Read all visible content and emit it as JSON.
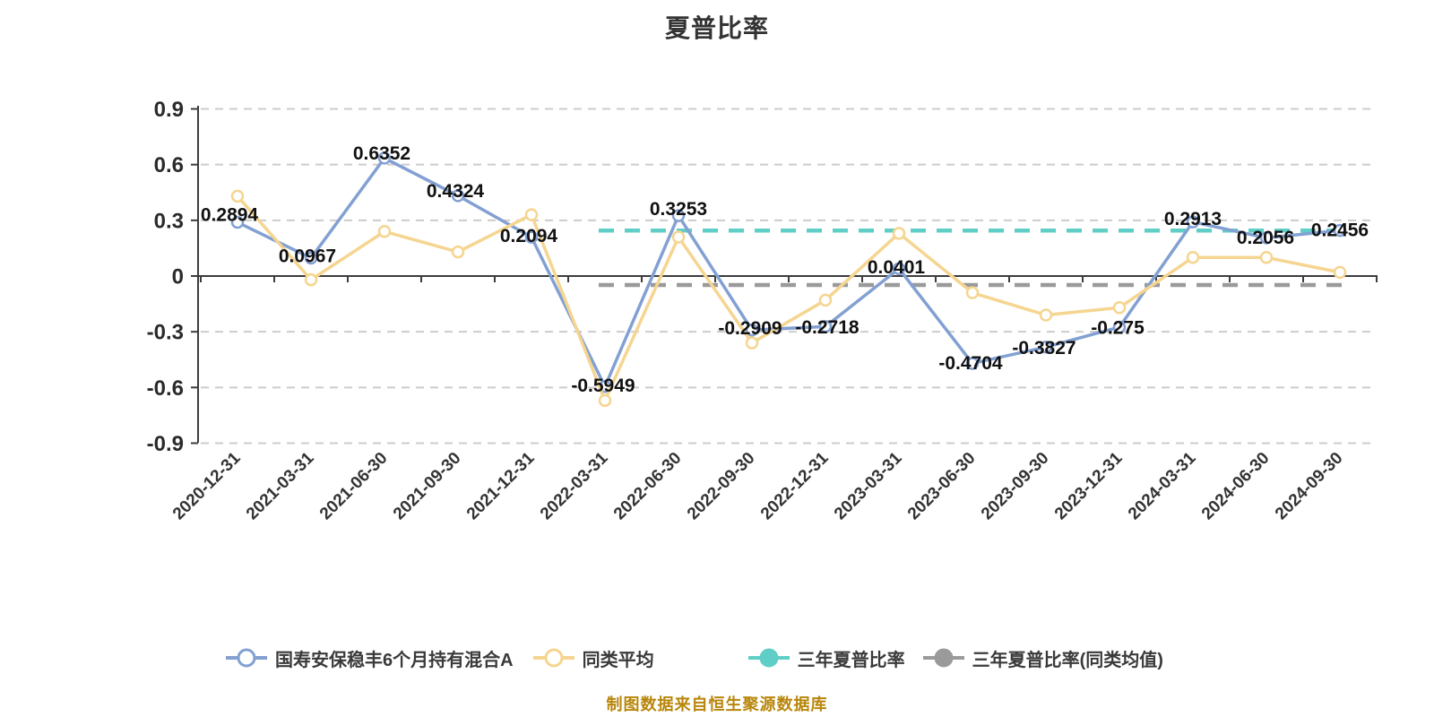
{
  "title": "夏普比率",
  "footer": "制图数据来自恒生聚源数据库",
  "colors": {
    "fund_line": "#82A0D2",
    "peer_line": "#F5D590",
    "sharpe_3y_line": "#5FCEC6",
    "sharpe_3y_peer_line": "#9A9A9A",
    "grid": "#CCCCCC",
    "axis": "#3C3C3C",
    "data_label": "#111111",
    "axis_label": "#2b2b2b",
    "title_color": "#333333",
    "footer_color": "#B8860B",
    "marker_fill": "#FFFFFF"
  },
  "legend": [
    {
      "label": "国寿安保稳丰6个月持有混合A",
      "color": "#82A0D2",
      "marker": "ring"
    },
    {
      "label": "同类平均",
      "color": "#F5D590",
      "marker": "ring"
    },
    {
      "label": "三年夏普比率",
      "color": "#5FCEC6",
      "marker": "dot"
    },
    {
      "label": "三年夏普比率(同类均值)",
      "color": "#9A9A9A",
      "marker": "dot"
    }
  ],
  "chart_data": {
    "type": "line",
    "title": "夏普比率",
    "categories": [
      "2020-12-31",
      "2021-03-31",
      "2021-06-30",
      "2021-09-30",
      "2021-12-31",
      "2022-03-31",
      "2022-06-30",
      "2022-09-30",
      "2022-12-31",
      "2023-03-31",
      "2023-06-30",
      "2023-09-30",
      "2023-12-31",
      "2024-03-31",
      "2024-06-30",
      "2024-09-30"
    ],
    "series": [
      {
        "name": "国寿安保稳丰6个月持有混合A",
        "type": "line",
        "color": "#82A0D2",
        "show_labels": true,
        "values": [
          0.2894,
          0.0967,
          0.6352,
          0.4324,
          0.2094,
          -0.5949,
          0.3253,
          -0.2909,
          -0.2718,
          0.0401,
          -0.4704,
          -0.3827,
          -0.275,
          0.2913,
          0.2056,
          0.2456
        ],
        "labels": [
          "0.2894",
          "0.0967",
          "0.6352",
          "0.4324",
          "0.2094",
          "-0.5949",
          "0.3253",
          "-0.2909",
          "-0.2718",
          "0.0401",
          "-0.4704",
          "-0.3827",
          "-0.275",
          "0.2913",
          "0.2056",
          "0.2456"
        ]
      },
      {
        "name": "同类平均",
        "type": "line",
        "color": "#F5D590",
        "show_labels": false,
        "values": [
          0.43,
          -0.02,
          0.24,
          0.13,
          0.33,
          -0.67,
          0.21,
          -0.36,
          -0.13,
          0.23,
          -0.09,
          -0.21,
          -0.17,
          0.1,
          0.1,
          0.02
        ]
      },
      {
        "name": "三年夏普比率",
        "type": "reference-line",
        "color": "#5FCEC6",
        "value": 0.245,
        "span": [
          "2022-03-31",
          "2024-09-30"
        ]
      },
      {
        "name": "三年夏普比率(同类均值)",
        "type": "reference-line",
        "color": "#9A9A9A",
        "value": -0.048,
        "span": [
          "2022-03-31",
          "2024-09-30"
        ]
      }
    ],
    "ylim": [
      -0.9,
      0.9
    ],
    "yticks": [
      "0.9",
      "0.6",
      "0.3",
      "0",
      "-0.3",
      "-0.6",
      "-0.9"
    ],
    "xlabel": "",
    "ylabel": "",
    "grid": "horizontal-dashed",
    "x_label_rotation": 45,
    "legend_position": "bottom"
  }
}
